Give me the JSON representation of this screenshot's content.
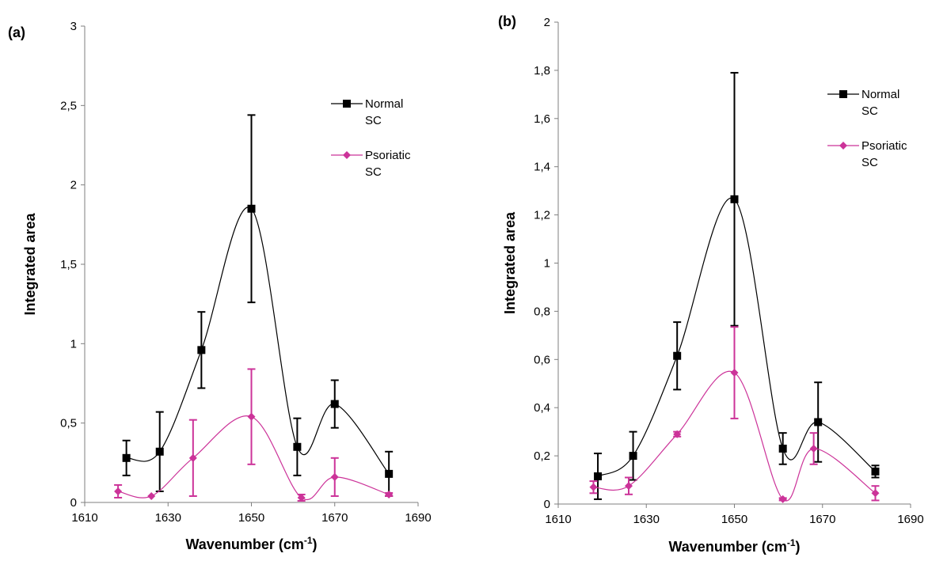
{
  "chart_data": [
    {
      "type": "line",
      "panel_label": "(a)",
      "xlabel": "Wavenumber (cm-1)",
      "xlabel_main": "Wavenumber (cm",
      "xlabel_sup": "-1",
      "xlabel_close": ")",
      "ylabel": "Integrated area",
      "xlim": [
        1610,
        1690
      ],
      "ylim": [
        0,
        3
      ],
      "x_ticks": [
        1610,
        1630,
        1650,
        1670,
        1690
      ],
      "y_ticks": [
        0,
        0.5,
        1,
        1.5,
        2,
        2.5,
        3
      ],
      "y_tick_labels": [
        "0",
        "0,5",
        "1",
        "1,5",
        "2",
        "2,5",
        "3"
      ],
      "legend_position": "top-right",
      "series": [
        {
          "name": "Normal SC",
          "name_lines": [
            "Normal",
            "SC"
          ],
          "color": "#000000",
          "marker": "square",
          "x": [
            1620,
            1628,
            1638,
            1650,
            1661,
            1670,
            1683
          ],
          "y": [
            0.28,
            0.32,
            0.96,
            1.85,
            0.35,
            0.62,
            0.18
          ],
          "err": [
            0.11,
            0.25,
            0.24,
            0.59,
            0.18,
            0.15,
            0.14
          ]
        },
        {
          "name": "Psoriatic SC",
          "name_lines": [
            "Psoriatic",
            "SC"
          ],
          "color": "#cc3399",
          "marker": "diamond",
          "x": [
            1618,
            1626,
            1636,
            1650,
            1662,
            1670,
            1683
          ],
          "y": [
            0.07,
            0.04,
            0.28,
            0.54,
            0.03,
            0.16,
            0.05
          ],
          "err": [
            0.04,
            0.0,
            0.24,
            0.3,
            0.02,
            0.12,
            0.01
          ]
        }
      ]
    },
    {
      "type": "line",
      "panel_label": "(b)",
      "xlabel": "Wavenumber (cm-1)",
      "xlabel_main": "Wavenumber (cm",
      "xlabel_sup": "-1",
      "xlabel_close": ")",
      "ylabel": "Integrated area",
      "xlim": [
        1610,
        1690
      ],
      "ylim": [
        0,
        2
      ],
      "x_ticks": [
        1610,
        1630,
        1650,
        1670,
        1690
      ],
      "y_ticks": [
        0,
        0.2,
        0.4,
        0.6,
        0.8,
        1,
        1.2,
        1.4,
        1.6,
        1.8,
        2
      ],
      "y_tick_labels": [
        "0",
        "0,2",
        "0,4",
        "0,6",
        "0,8",
        "1",
        "1,2",
        "1,4",
        "1,6",
        "1,8",
        "2"
      ],
      "legend_position": "top-right",
      "series": [
        {
          "name": "Normal SC",
          "name_lines": [
            "Normal",
            "SC"
          ],
          "color": "#000000",
          "marker": "square",
          "x": [
            1619,
            1627,
            1637,
            1650,
            1661,
            1669,
            1682
          ],
          "y": [
            0.115,
            0.2,
            0.615,
            1.265,
            0.23,
            0.34,
            0.135
          ],
          "err": [
            0.095,
            0.1,
            0.14,
            0.525,
            0.065,
            0.165,
            0.025
          ]
        },
        {
          "name": "Psoriatic SC",
          "name_lines": [
            "Psoriatic",
            "SC"
          ],
          "color": "#cc3399",
          "marker": "diamond",
          "x": [
            1618,
            1626,
            1637,
            1650,
            1661,
            1668,
            1682
          ],
          "y": [
            0.07,
            0.075,
            0.29,
            0.545,
            0.02,
            0.23,
            0.045
          ],
          "err": [
            0.025,
            0.035,
            0.01,
            0.19,
            0.005,
            0.065,
            0.03
          ]
        }
      ]
    }
  ]
}
